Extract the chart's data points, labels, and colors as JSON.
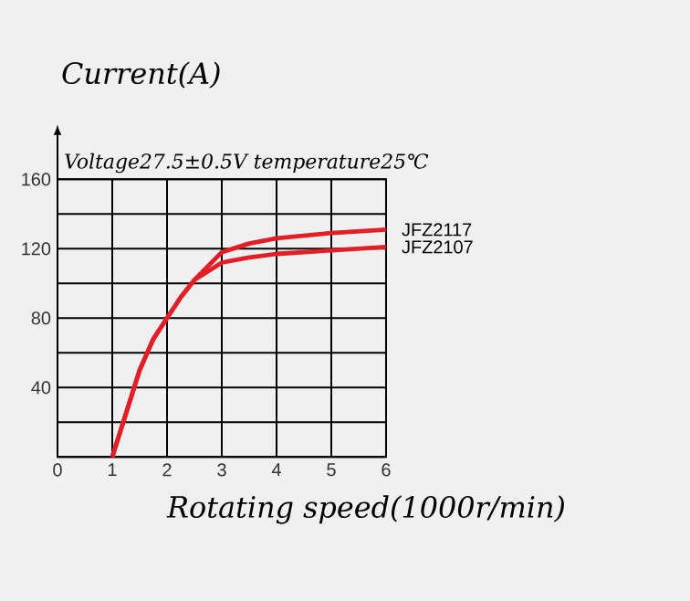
{
  "chart_data": {
    "type": "line",
    "xlabel": "Rotating speed(1000r/min)",
    "ylabel": "Current(A)",
    "annotations": [
      "Voltage27.5±0.5V temperature25℃"
    ],
    "xlim": [
      0,
      6
    ],
    "xticks": [
      0,
      1,
      2,
      3,
      4,
      5,
      6
    ],
    "ylim": [
      0,
      160
    ],
    "yticks": [
      {
        "value": 0,
        "label": null
      },
      {
        "value": 20,
        "label": null
      },
      40,
      {
        "value": 60,
        "label": null
      },
      80,
      {
        "value": 100,
        "label": null
      },
      120,
      {
        "value": 140,
        "label": null
      },
      160
    ],
    "grid": true,
    "marker": "none",
    "line_style": "solid",
    "series": [
      {
        "name": "JFZ2117",
        "color": "#e31e26",
        "x": [
          1,
          1.25,
          1.5,
          1.75,
          2,
          2.25,
          2.5,
          3,
          3.5,
          4,
          5,
          6
        ],
        "values": [
          0,
          25,
          50,
          68,
          80,
          92,
          102,
          118,
          123,
          126,
          129,
          131
        ]
      },
      {
        "name": "JFZ2107",
        "color": "#e31e26",
        "x": [
          1,
          1.25,
          1.5,
          1.75,
          2,
          2.25,
          2.5,
          3,
          3.5,
          4,
          5,
          6
        ],
        "values": [
          0,
          25,
          50,
          68,
          80,
          92,
          102,
          112,
          115,
          117,
          119,
          121
        ]
      }
    ]
  }
}
